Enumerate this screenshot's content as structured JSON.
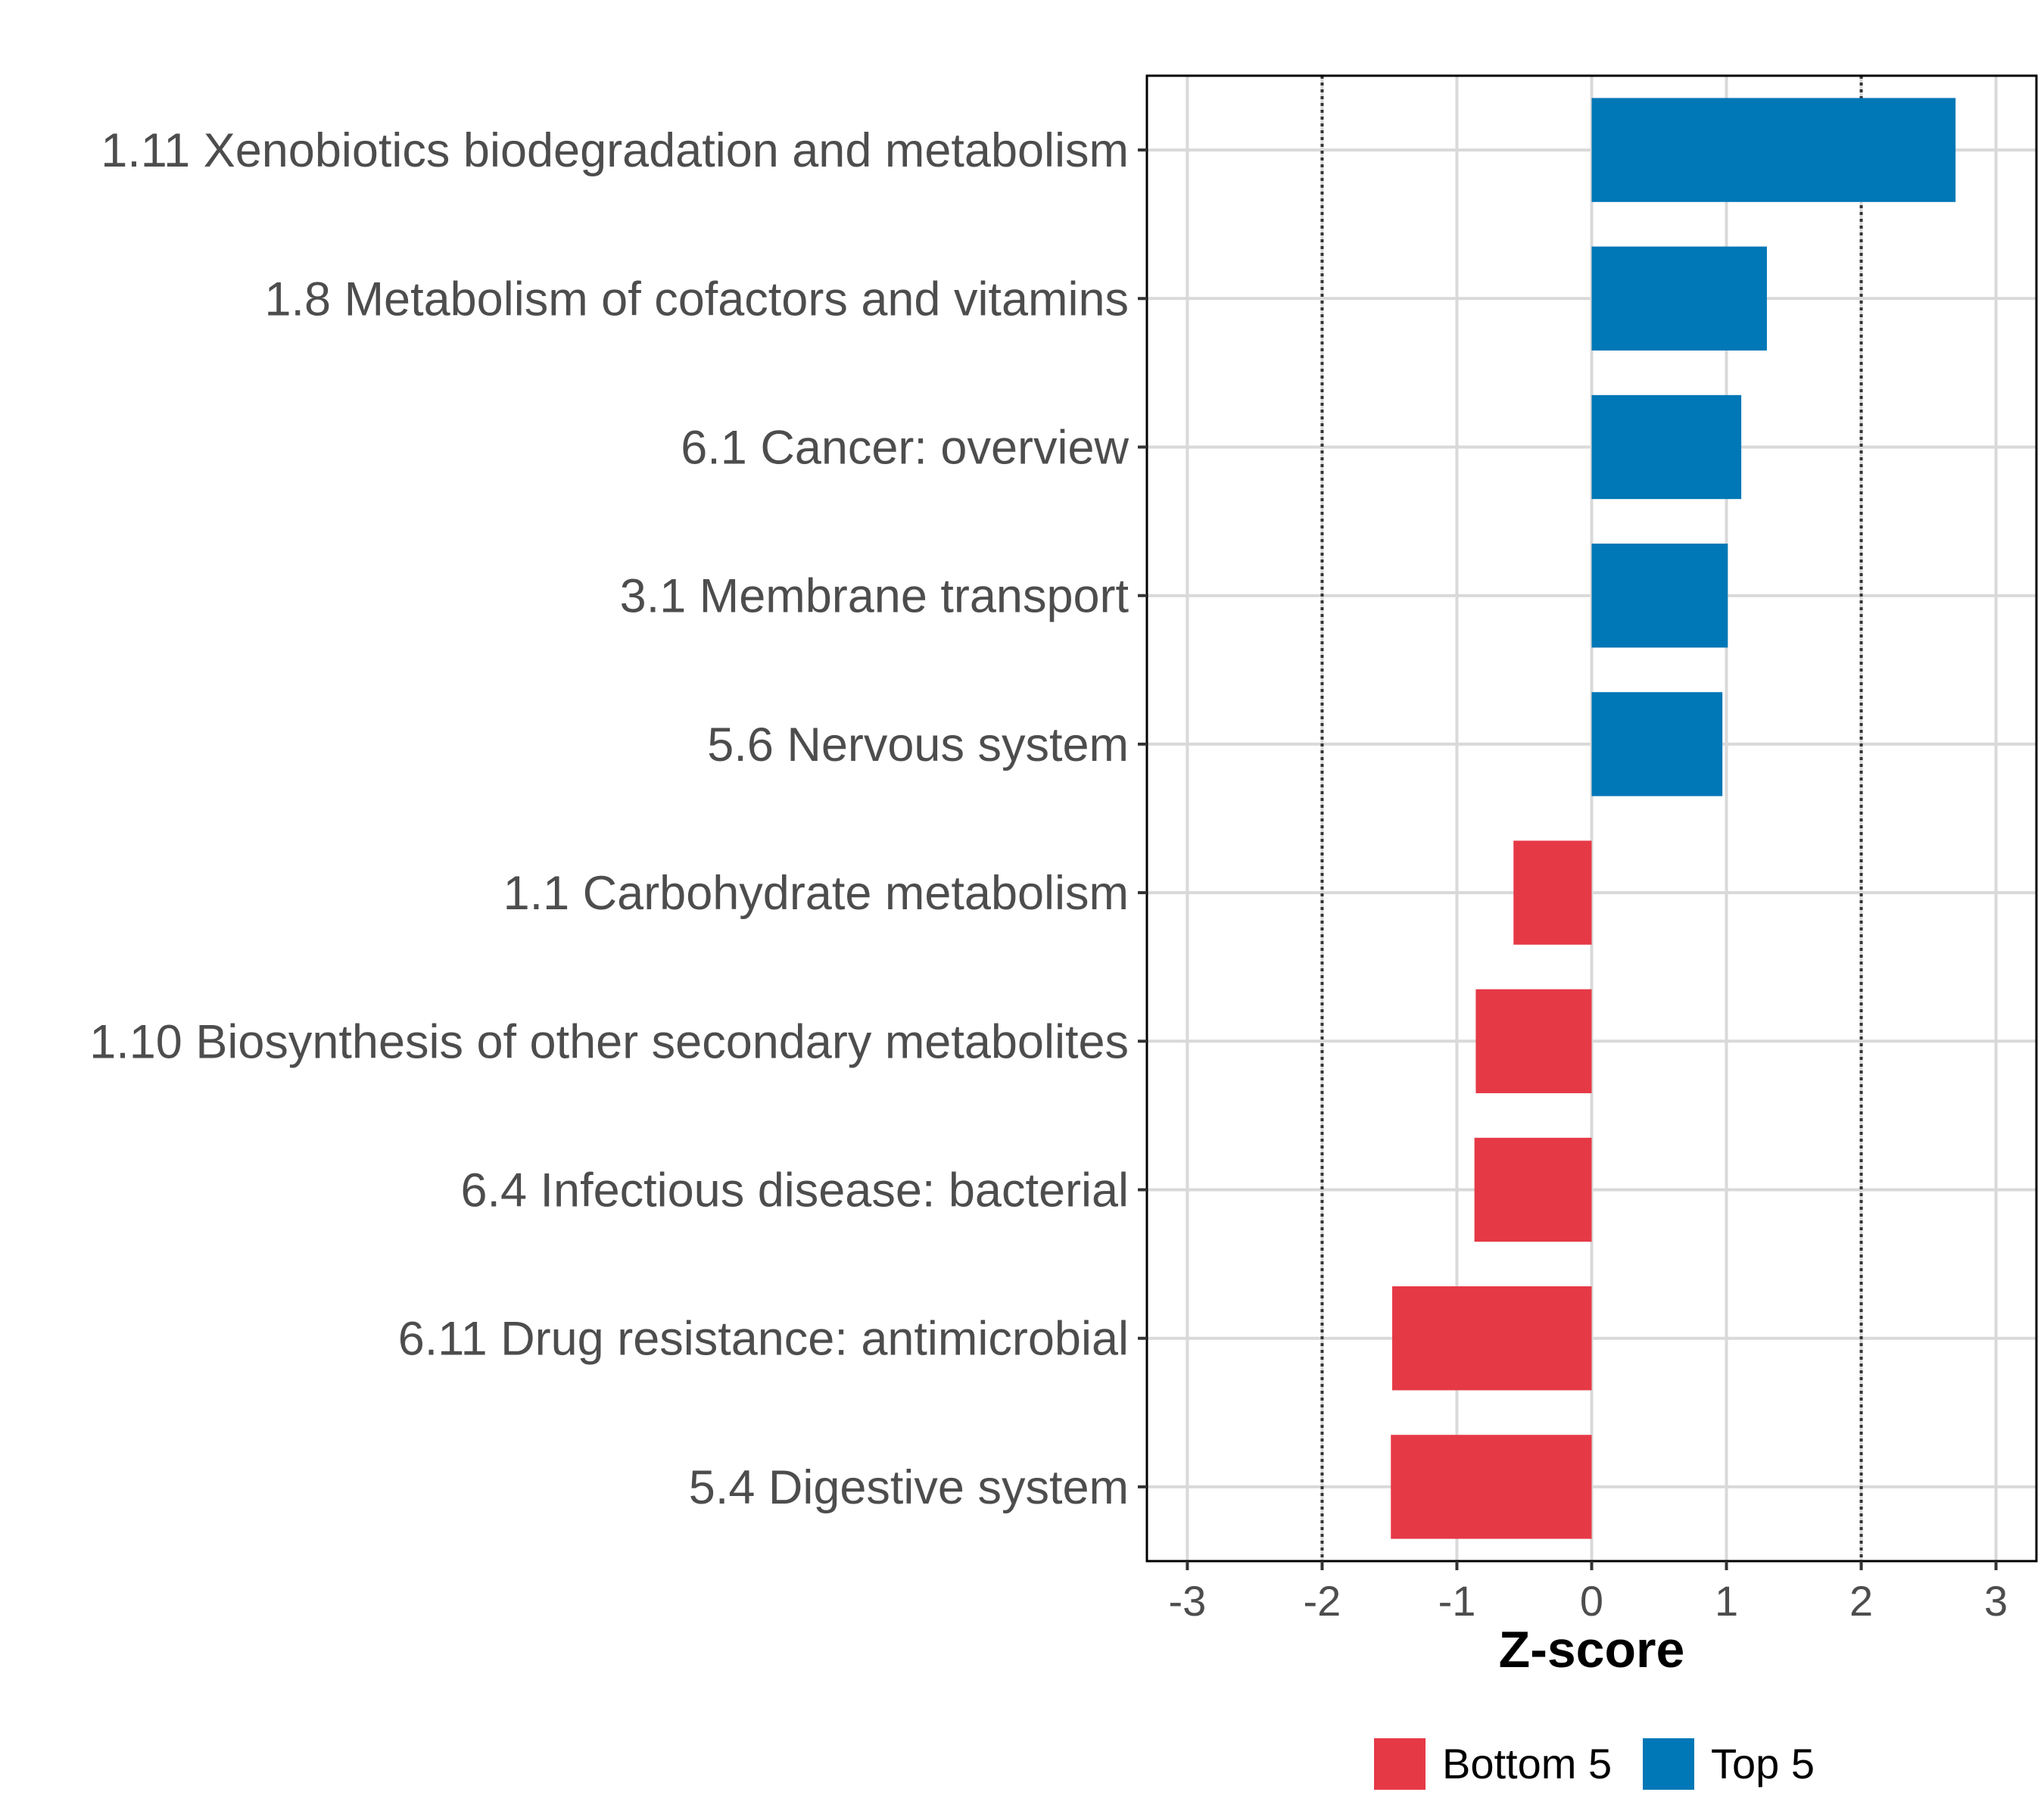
{
  "chart_data": {
    "type": "bar",
    "orientation": "horizontal",
    "title": "",
    "xlabel": "Z-score",
    "ylabel": "",
    "xlim": [
      -3.3,
      3.3
    ],
    "xticks": [
      -3,
      -2,
      -1,
      0,
      1,
      2,
      3
    ],
    "reference_lines": [
      -2,
      2
    ],
    "grid": true,
    "legend_position": "bottom",
    "categories": [
      "1.11 Xenobiotics biodegradation and metabolism",
      "1.8 Metabolism of cofactors and vitamins",
      "6.1 Cancer: overview",
      "3.1 Membrane transport",
      "5.6 Nervous system",
      "1.1 Carbohydrate metabolism",
      "1.10 Biosynthesis of other secondary metabolites",
      "6.4 Infectious disease: bacterial",
      "6.11 Drug resistance: antimicrobial",
      "5.4 Digestive system"
    ],
    "values": [
      2.7,
      1.3,
      1.11,
      1.01,
      0.97,
      -0.58,
      -0.86,
      -0.87,
      -1.48,
      -1.49
    ],
    "groups": [
      "Top 5",
      "Top 5",
      "Top 5",
      "Top 5",
      "Top 5",
      "Bottom 5",
      "Bottom 5",
      "Bottom 5",
      "Bottom 5",
      "Bottom 5"
    ],
    "legend": [
      {
        "name": "Bottom 5",
        "color": "#E63946"
      },
      {
        "name": "Top 5",
        "color": "#0077B6"
      }
    ]
  }
}
